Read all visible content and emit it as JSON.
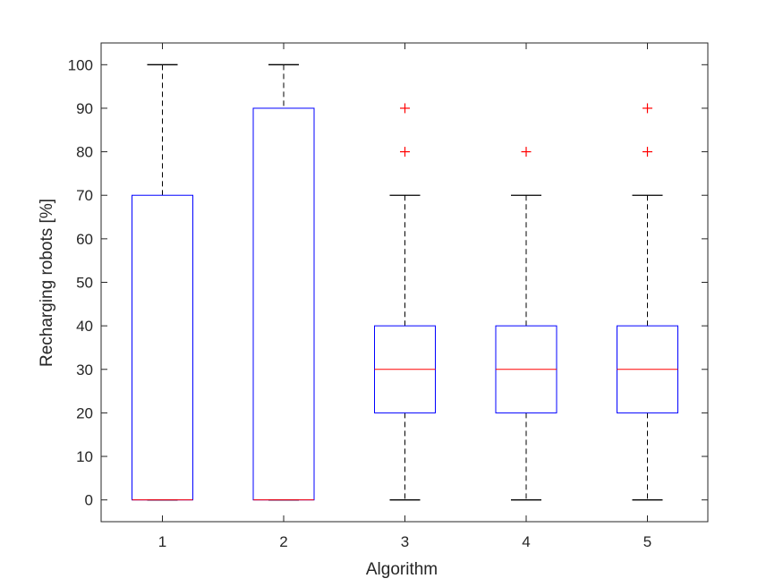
{
  "chart_data": {
    "type": "box",
    "xlabel": "Algorithm",
    "ylabel": "Recharging robots [%]",
    "ylim": [
      -5,
      105
    ],
    "yticks": [
      0,
      10,
      20,
      30,
      40,
      50,
      60,
      70,
      80,
      90,
      100
    ],
    "categories": [
      "1",
      "2",
      "3",
      "4",
      "5"
    ],
    "boxes": [
      {
        "category": "1",
        "whisker_low": 0,
        "q1": 0,
        "median": 0,
        "q3": 70,
        "whisker_high": 100,
        "outliers": []
      },
      {
        "category": "2",
        "whisker_low": 0,
        "q1": 0,
        "median": 0,
        "q3": 90,
        "whisker_high": 100,
        "outliers": []
      },
      {
        "category": "3",
        "whisker_low": 0,
        "q1": 20,
        "median": 30,
        "q3": 40,
        "whisker_high": 70,
        "outliers": [
          80,
          90
        ]
      },
      {
        "category": "4",
        "whisker_low": 0,
        "q1": 20,
        "median": 30,
        "q3": 40,
        "whisker_high": 70,
        "outliers": [
          80
        ]
      },
      {
        "category": "5",
        "whisker_low": 0,
        "q1": 20,
        "median": 30,
        "q3": 40,
        "whisker_high": 70,
        "outliers": [
          80,
          90
        ]
      }
    ],
    "grid": false,
    "colors": {
      "box": "#0000ff",
      "median": "#ff0000",
      "whisker": "#000000",
      "outlier": "#ff0000",
      "axis": "#262626"
    }
  }
}
